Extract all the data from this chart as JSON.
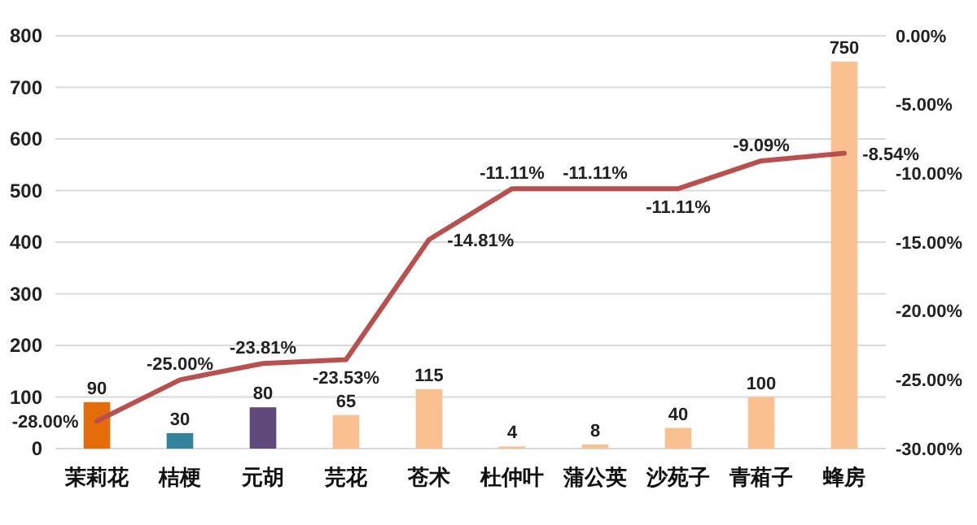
{
  "chart_data": {
    "type": "bar",
    "categories": [
      "茉莉花",
      "桔梗",
      "元胡",
      "芫花",
      "苍术",
      "杜仲叶",
      "蒲公英",
      "沙苑子",
      "青葙子",
      "蜂房"
    ],
    "series": [
      {
        "colors": [
          "#e46c0a",
          "#31849b",
          "#604a7b",
          "#fac090",
          "#fac090",
          "#fac090",
          "#fac090",
          "#fac090",
          "#fac090",
          "#fac090"
        ],
        "values": [
          90,
          30,
          80,
          65,
          115,
          4,
          8,
          40,
          100,
          750
        ],
        "value_labels": [
          "90",
          "30",
          "80",
          "65",
          "115",
          "4",
          "8",
          "40",
          "100",
          "750"
        ]
      },
      {
        "type": "line",
        "axis": "y2",
        "color": "#b9504e",
        "values": [
          -28,
          -25,
          -23.81,
          -23.53,
          -14.81,
          -11.11,
          -11.11,
          -11.11,
          -9.09,
          -8.54
        ],
        "value_labels": [
          "-28.00%",
          "-25.00%",
          "-23.81%",
          "-23.53%",
          "-14.81%",
          "-11.11%",
          "-11.11%",
          "-11.11%",
          "-9.09%",
          "-8.54%"
        ]
      }
    ],
    "ylim": [
      0,
      800
    ],
    "yticks": [
      0,
      100,
      200,
      300,
      400,
      500,
      600,
      700,
      800
    ],
    "y2lim": [
      -30,
      0
    ],
    "y2ticks": [
      {
        "value": -30,
        "label": "-30.00%"
      },
      {
        "value": -25,
        "label": "-25.00%"
      },
      {
        "value": -20,
        "label": "-20.00%"
      },
      {
        "value": -15,
        "label": "-15.00%"
      },
      {
        "value": -10,
        "label": "-10.00%"
      },
      {
        "value": -5,
        "label": "-5.00%"
      },
      {
        "value": 0,
        "label": "0.00%"
      }
    ],
    "grid": "y",
    "marker": "none",
    "line_style": "solid"
  }
}
